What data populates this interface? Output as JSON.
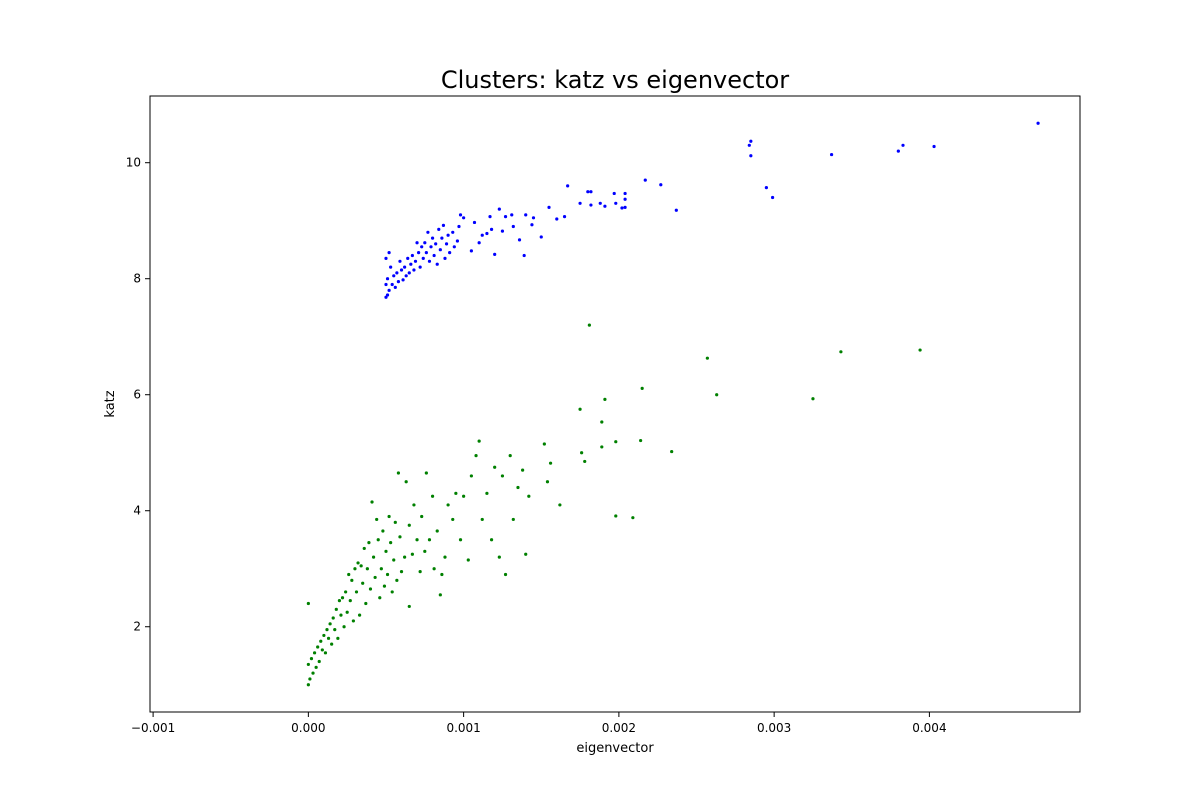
{
  "chart_data": {
    "type": "scatter",
    "title": "Clusters: katz vs eigenvector",
    "xlabel": "eigenvector",
    "ylabel": "katz",
    "xlim": [
      -0.00102,
      0.00497
    ],
    "ylim": [
      0.53,
      11.15
    ],
    "x_ticks": [
      -0.001,
      0.0,
      0.001,
      0.002,
      0.003,
      0.004
    ],
    "x_tick_labels": [
      "−0.001",
      "0.000",
      "0.001",
      "0.002",
      "0.003",
      "0.004"
    ],
    "y_ticks": [
      2,
      4,
      6,
      8,
      10
    ],
    "y_tick_labels": [
      "2",
      "4",
      "6",
      "8",
      "10"
    ],
    "grid": false,
    "legend": "none",
    "series": [
      {
        "color": "#0000ff",
        "points": [
          [
            0.0047,
            10.68
          ],
          [
            0.00403,
            10.28
          ],
          [
            0.00383,
            10.3
          ],
          [
            0.0038,
            10.2
          ],
          [
            0.00337,
            10.14
          ],
          [
            0.00299,
            9.4
          ],
          [
            0.00295,
            9.57
          ],
          [
            0.00285,
            10.37
          ],
          [
            0.00284,
            10.3
          ],
          [
            0.00285,
            10.12
          ],
          [
            0.00237,
            9.18
          ],
          [
            0.00227,
            9.62
          ],
          [
            0.00217,
            9.7
          ],
          [
            0.00204,
            9.47
          ],
          [
            0.00204,
            9.37
          ],
          [
            0.00204,
            9.23
          ],
          [
            0.00202,
            9.22
          ],
          [
            0.00198,
            9.3
          ],
          [
            0.00197,
            9.47
          ],
          [
            0.00191,
            9.25
          ],
          [
            0.00188,
            9.3
          ],
          [
            0.00182,
            9.5
          ],
          [
            0.00182,
            9.27
          ],
          [
            0.0018,
            9.5
          ],
          [
            0.00175,
            9.3
          ],
          [
            0.00167,
            9.6
          ],
          [
            0.00165,
            9.07
          ],
          [
            0.0016,
            9.03
          ],
          [
            0.00155,
            9.23
          ],
          [
            0.0015,
            8.72
          ],
          [
            0.00145,
            9.05
          ],
          [
            0.00144,
            8.93
          ],
          [
            0.0014,
            9.1
          ],
          [
            0.00139,
            8.4
          ],
          [
            0.00136,
            8.67
          ],
          [
            0.00132,
            8.9
          ],
          [
            0.00131,
            9.1
          ],
          [
            0.00127,
            9.07
          ],
          [
            0.00125,
            8.82
          ],
          [
            0.00123,
            9.2
          ],
          [
            0.0012,
            8.42
          ],
          [
            0.00118,
            8.85
          ],
          [
            0.00117,
            9.07
          ],
          [
            0.00115,
            8.78
          ],
          [
            0.00112,
            8.75
          ],
          [
            0.0011,
            8.62
          ],
          [
            0.00107,
            8.97
          ],
          [
            0.00105,
            8.48
          ],
          [
            0.001,
            9.05
          ],
          [
            0.00098,
            9.1
          ],
          [
            0.00097,
            8.9
          ],
          [
            0.00096,
            8.65
          ],
          [
            0.00094,
            8.55
          ],
          [
            0.00093,
            8.8
          ],
          [
            0.00091,
            8.45
          ],
          [
            0.0009,
            8.75
          ],
          [
            0.00089,
            8.6
          ],
          [
            0.00088,
            8.35
          ],
          [
            0.00087,
            8.92
          ],
          [
            0.00086,
            8.7
          ],
          [
            0.00085,
            8.5
          ],
          [
            0.00084,
            8.85
          ],
          [
            0.00083,
            8.25
          ],
          [
            0.00082,
            8.6
          ],
          [
            0.00081,
            8.4
          ],
          [
            0.0008,
            8.7
          ],
          [
            0.00079,
            8.55
          ],
          [
            0.00078,
            8.3
          ],
          [
            0.00077,
            8.8
          ],
          [
            0.00076,
            8.45
          ],
          [
            0.00075,
            8.62
          ],
          [
            0.00074,
            8.35
          ],
          [
            0.00073,
            8.55
          ],
          [
            0.00072,
            8.2
          ],
          [
            0.00071,
            8.45
          ],
          [
            0.0007,
            8.62
          ],
          [
            0.00069,
            8.3
          ],
          [
            0.00068,
            8.15
          ],
          [
            0.00067,
            8.4
          ],
          [
            0.00066,
            8.25
          ],
          [
            0.00065,
            8.1
          ],
          [
            0.00064,
            8.35
          ],
          [
            0.00063,
            8.05
          ],
          [
            0.00062,
            8.2
          ],
          [
            0.00061,
            7.98
          ],
          [
            0.0006,
            8.15
          ],
          [
            0.00059,
            8.3
          ],
          [
            0.00058,
            7.95
          ],
          [
            0.00057,
            8.1
          ],
          [
            0.00056,
            7.85
          ],
          [
            0.00055,
            8.05
          ],
          [
            0.00054,
            7.9
          ],
          [
            0.00053,
            8.2
          ],
          [
            0.00052,
            7.8
          ],
          [
            0.00052,
            8.45
          ],
          [
            0.00051,
            7.72
          ],
          [
            0.00051,
            8.0
          ],
          [
            0.0005,
            7.68
          ],
          [
            0.0005,
            7.9
          ],
          [
            0.0005,
            8.35
          ]
        ]
      },
      {
        "color": "#008000",
        "points": [
          [
            0.00394,
            6.77
          ],
          [
            0.00343,
            6.74
          ],
          [
            0.00325,
            5.93
          ],
          [
            0.00263,
            6.0
          ],
          [
            0.00257,
            6.63
          ],
          [
            0.00234,
            5.02
          ],
          [
            0.00215,
            6.11
          ],
          [
            0.00214,
            5.21
          ],
          [
            0.00209,
            3.88
          ],
          [
            0.00198,
            5.19
          ],
          [
            0.00198,
            3.91
          ],
          [
            0.00191,
            5.92
          ],
          [
            0.00189,
            5.53
          ],
          [
            0.00189,
            5.1
          ],
          [
            0.00181,
            7.2
          ],
          [
            0.00178,
            4.85
          ],
          [
            0.00176,
            5.0
          ],
          [
            0.00175,
            5.75
          ],
          [
            0.00162,
            4.1
          ],
          [
            0.00156,
            4.82
          ],
          [
            0.00154,
            4.5
          ],
          [
            0.00152,
            5.15
          ],
          [
            0.00142,
            4.25
          ],
          [
            0.0014,
            3.25
          ],
          [
            0.00138,
            4.7
          ],
          [
            0.00135,
            4.4
          ],
          [
            0.00132,
            3.85
          ],
          [
            0.0013,
            4.95
          ],
          [
            0.00127,
            2.9
          ],
          [
            0.00125,
            4.6
          ],
          [
            0.00123,
            3.2
          ],
          [
            0.0012,
            4.75
          ],
          [
            0.00118,
            3.5
          ],
          [
            0.00115,
            4.3
          ],
          [
            0.00112,
            3.85
          ],
          [
            0.0011,
            5.2
          ],
          [
            0.00108,
            4.95
          ],
          [
            0.00105,
            4.6
          ],
          [
            0.00103,
            3.15
          ],
          [
            0.001,
            4.25
          ],
          [
            0.00098,
            3.5
          ],
          [
            0.00095,
            4.3
          ],
          [
            0.00093,
            3.85
          ],
          [
            0.0009,
            4.1
          ],
          [
            0.00088,
            3.2
          ],
          [
            0.00086,
            2.9
          ],
          [
            0.00085,
            2.55
          ],
          [
            0.00083,
            3.65
          ],
          [
            0.00081,
            3.0
          ],
          [
            0.0008,
            4.25
          ],
          [
            0.00078,
            3.5
          ],
          [
            0.00076,
            4.65
          ],
          [
            0.00075,
            3.3
          ],
          [
            0.00073,
            3.9
          ],
          [
            0.00072,
            2.95
          ],
          [
            0.0007,
            3.5
          ],
          [
            0.00068,
            4.1
          ],
          [
            0.00067,
            3.25
          ],
          [
            0.00065,
            3.75
          ],
          [
            0.00065,
            2.35
          ],
          [
            0.00063,
            4.5
          ],
          [
            0.00062,
            3.2
          ],
          [
            0.0006,
            2.95
          ],
          [
            0.00059,
            3.55
          ],
          [
            0.00058,
            4.65
          ],
          [
            0.00057,
            2.8
          ],
          [
            0.00056,
            3.8
          ],
          [
            0.00055,
            3.15
          ],
          [
            0.00054,
            2.6
          ],
          [
            0.00053,
            3.45
          ],
          [
            0.00052,
            3.9
          ],
          [
            0.00051,
            2.9
          ],
          [
            0.0005,
            3.3
          ],
          [
            0.00049,
            2.7
          ],
          [
            0.00048,
            3.65
          ],
          [
            0.00047,
            3.0
          ],
          [
            0.00046,
            2.5
          ],
          [
            0.00045,
            3.5
          ],
          [
            0.00044,
            3.85
          ],
          [
            0.00043,
            2.85
          ],
          [
            0.00042,
            3.2
          ],
          [
            0.00041,
            4.15
          ],
          [
            0.0004,
            2.65
          ],
          [
            0.00039,
            3.45
          ],
          [
            0.00038,
            3.0
          ],
          [
            0.00037,
            2.4
          ],
          [
            0.00036,
            3.35
          ],
          [
            0.00035,
            2.75
          ],
          [
            0.00034,
            3.05
          ],
          [
            0.00033,
            2.2
          ],
          [
            0.00032,
            3.1
          ],
          [
            0.00031,
            2.6
          ],
          [
            0.0003,
            3.0
          ],
          [
            0.00029,
            2.1
          ],
          [
            0.00028,
            2.8
          ],
          [
            0.00027,
            2.45
          ],
          [
            0.00026,
            2.9
          ],
          [
            0.00025,
            2.25
          ],
          [
            0.00024,
            2.6
          ],
          [
            0.00023,
            2.0
          ],
          [
            0.00022,
            2.5
          ],
          [
            0.00021,
            2.2
          ],
          [
            0.0002,
            2.45
          ],
          [
            0.00019,
            1.8
          ],
          [
            0.00018,
            2.3
          ],
          [
            0.00017,
            1.95
          ],
          [
            0.00016,
            2.15
          ],
          [
            0.00015,
            1.7
          ],
          [
            0.00014,
            2.05
          ],
          [
            0.00013,
            1.8
          ],
          [
            0.00012,
            1.95
          ],
          [
            0.00011,
            1.55
          ],
          [
            0.0001,
            1.85
          ],
          [
            9e-05,
            1.6
          ],
          [
            8e-05,
            1.75
          ],
          [
            7e-05,
            1.4
          ],
          [
            6e-05,
            1.65
          ],
          [
            5e-05,
            1.3
          ],
          [
            4e-05,
            1.55
          ],
          [
            3e-05,
            1.2
          ],
          [
            2e-05,
            1.45
          ],
          [
            1e-05,
            1.1
          ],
          [
            0.0,
            1.35
          ],
          [
            0.0,
            1.0
          ],
          [
            0.0,
            2.4
          ]
        ]
      }
    ]
  }
}
